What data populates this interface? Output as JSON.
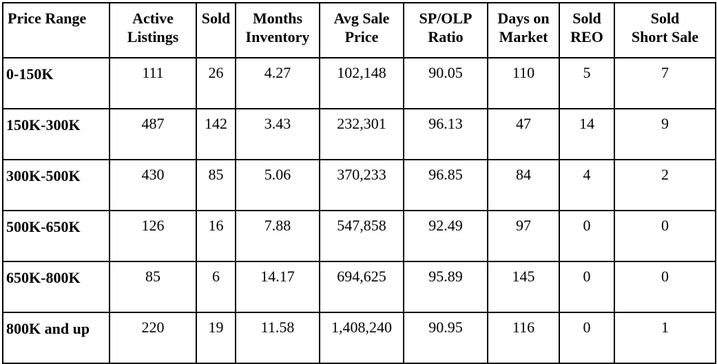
{
  "table": {
    "headers": [
      {
        "line1": "Price Range",
        "line2": ""
      },
      {
        "line1": "Active",
        "line2": "Listings"
      },
      {
        "line1": "Sold",
        "line2": ""
      },
      {
        "line1": "Months",
        "line2": "Inventory"
      },
      {
        "line1": "Avg Sale",
        "line2": "Price"
      },
      {
        "line1": "SP/OLP",
        "line2": "Ratio"
      },
      {
        "line1": "Days on",
        "line2": "Market"
      },
      {
        "line1": "Sold",
        "line2": "REO"
      },
      {
        "line1": "Sold",
        "line2": "Short Sale"
      }
    ],
    "rows": [
      [
        "0-150K",
        "111",
        "26",
        "4.27",
        "102,148",
        "90.05",
        "110",
        "5",
        "7"
      ],
      [
        "150K-300K",
        "487",
        "142",
        "3.43",
        "232,301",
        "96.13",
        "47",
        "14",
        "9"
      ],
      [
        "300K-500K",
        "430",
        "85",
        "5.06",
        "370,233",
        "96.85",
        "84",
        "4",
        "2"
      ],
      [
        "500K-650K",
        "126",
        "16",
        "7.88",
        "547,858",
        "92.49",
        "97",
        "0",
        "0"
      ],
      [
        "650K-800K",
        "85",
        "6",
        "14.17",
        "694,625",
        "95.89",
        "145",
        "0",
        "0"
      ],
      [
        "800K and up",
        "220",
        "19",
        "11.58",
        "1,408,240",
        "90.95",
        "116",
        "0",
        "1"
      ]
    ]
  }
}
